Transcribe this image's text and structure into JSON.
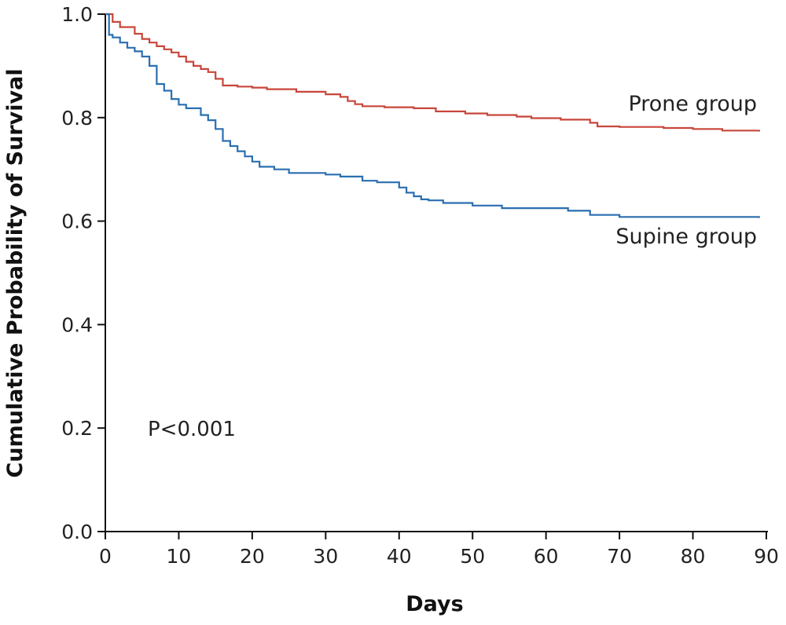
{
  "chart_data": {
    "type": "line",
    "step": true,
    "xlabel": "Days",
    "ylabel": "Cumulative Probability of Survival",
    "xlim": [
      0,
      90
    ],
    "ylim": [
      0,
      1.0
    ],
    "xticks": [
      "0",
      "10",
      "20",
      "30",
      "40",
      "50",
      "60",
      "70",
      "80",
      "90"
    ],
    "yticks": [
      "0.0",
      "0.2",
      "0.4",
      "0.6",
      "0.8",
      "1.0"
    ],
    "grid": false,
    "annotation": "P<0.001",
    "series": [
      {
        "name": "Prone group",
        "color": "#c8463a",
        "x": [
          0,
          1,
          2,
          4,
          5,
          6,
          7,
          8,
          9,
          10,
          11,
          12,
          13,
          14,
          15,
          16,
          18,
          20,
          22,
          26,
          30,
          32,
          33,
          34,
          35,
          38,
          42,
          45,
          49,
          52,
          56,
          58,
          62,
          66,
          67,
          70,
          76,
          80,
          84,
          89
        ],
        "y": [
          1.0,
          0.985,
          0.975,
          0.962,
          0.952,
          0.945,
          0.938,
          0.932,
          0.926,
          0.918,
          0.908,
          0.9,
          0.894,
          0.888,
          0.875,
          0.862,
          0.86,
          0.858,
          0.855,
          0.85,
          0.845,
          0.84,
          0.832,
          0.826,
          0.822,
          0.82,
          0.818,
          0.812,
          0.808,
          0.805,
          0.802,
          0.799,
          0.796,
          0.79,
          0.783,
          0.782,
          0.78,
          0.778,
          0.775,
          0.773
        ]
      },
      {
        "name": "Supine group",
        "color": "#2a6fb0",
        "x": [
          0,
          0.5,
          1,
          2,
          3,
          4,
          5,
          6,
          7,
          8,
          9,
          10,
          11,
          13,
          14,
          15,
          16,
          17,
          18,
          19,
          20,
          21,
          23,
          25,
          30,
          32,
          35,
          37,
          40,
          41,
          42,
          43,
          44,
          46,
          50,
          54,
          63,
          66,
          70,
          89
        ],
        "y": [
          1.0,
          0.96,
          0.955,
          0.945,
          0.935,
          0.928,
          0.918,
          0.9,
          0.865,
          0.852,
          0.836,
          0.825,
          0.818,
          0.805,
          0.795,
          0.778,
          0.755,
          0.745,
          0.735,
          0.725,
          0.715,
          0.705,
          0.7,
          0.693,
          0.69,
          0.686,
          0.678,
          0.675,
          0.665,
          0.655,
          0.648,
          0.642,
          0.64,
          0.635,
          0.63,
          0.625,
          0.62,
          0.612,
          0.608,
          0.606
        ]
      }
    ]
  }
}
